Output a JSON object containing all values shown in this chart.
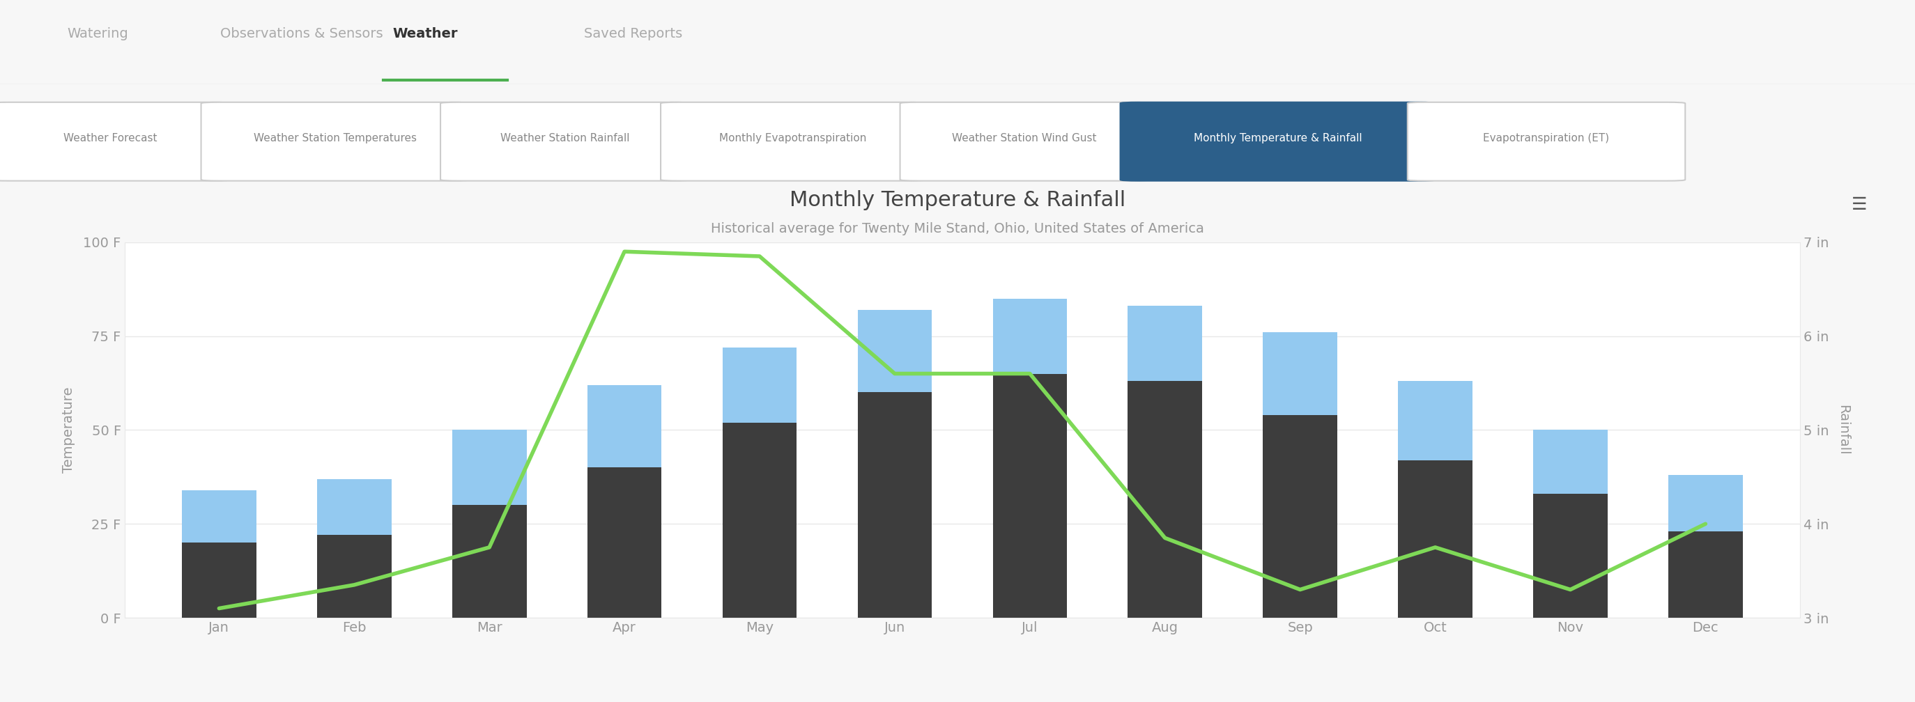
{
  "title": "Monthly Temperature & Rainfall",
  "subtitle": "Historical average for Twenty Mile Stand, Ohio, United States of America",
  "months": [
    "Jan",
    "Feb",
    "Mar",
    "Apr",
    "May",
    "Jun",
    "Jul",
    "Aug",
    "Sep",
    "Oct",
    "Nov",
    "Dec"
  ],
  "min_temp": [
    20,
    22,
    30,
    40,
    52,
    60,
    65,
    63,
    54,
    42,
    33,
    23
  ],
  "max_temp": [
    34,
    37,
    50,
    62,
    72,
    82,
    85,
    83,
    76,
    63,
    50,
    38
  ],
  "rainfall": [
    3.1,
    3.35,
    3.75,
    6.9,
    6.85,
    5.6,
    5.6,
    3.85,
    3.3,
    3.75,
    3.3,
    4.0
  ],
  "bar_color_min": "#3d3d3d",
  "bar_color_max": "#93c9f0",
  "line_color": "#7ed957",
  "left_ylim": [
    0,
    100
  ],
  "right_ylim": [
    3,
    7
  ],
  "left_yticks": [
    0,
    25,
    50,
    75,
    100
  ],
  "left_ytick_labels": [
    "0 F",
    "25 F",
    "50 F",
    "75 F",
    "100 F"
  ],
  "right_yticks": [
    3,
    4,
    5,
    6,
    7
  ],
  "right_ytick_labels": [
    "3 in",
    "4 in",
    "5 in",
    "6 in",
    "7 in"
  ],
  "background_color": "#ffffff",
  "fig_background_color": "#f7f7f7",
  "title_color": "#444444",
  "subtitle_color": "#999999",
  "tick_color": "#999999",
  "grid_color": "#e8e8e8",
  "bar_width": 0.55,
  "line_width": 4.0,
  "title_fontsize": 22,
  "subtitle_fontsize": 14,
  "tick_fontsize": 14,
  "legend_fontsize": 14,
  "ylabel_left": "Temperature",
  "ylabel_right": "Rainfall",
  "nav_tabs": [
    "Watering",
    "Observations & Sensors",
    "Weather",
    "Saved Reports"
  ],
  "nav_active": 2,
  "pill_buttons": [
    "Weather Forecast",
    "Weather Station Temperatures",
    "Weather Station Rainfall",
    "Monthly Evapotranspiration",
    "Weather Station Wind Gust",
    "Monthly Temperature & Rainfall",
    "Evapotranspiration (ET)"
  ],
  "pill_active": 5,
  "nav_tab_color": "#aaaaaa",
  "nav_active_color": "#333333",
  "nav_underline_color": "#4caf50",
  "pill_border_color": "#cccccc",
  "pill_active_bg": "#2c5f8a",
  "pill_active_text": "#ffffff",
  "pill_inactive_text": "#888888",
  "hamburger_color": "#555555"
}
